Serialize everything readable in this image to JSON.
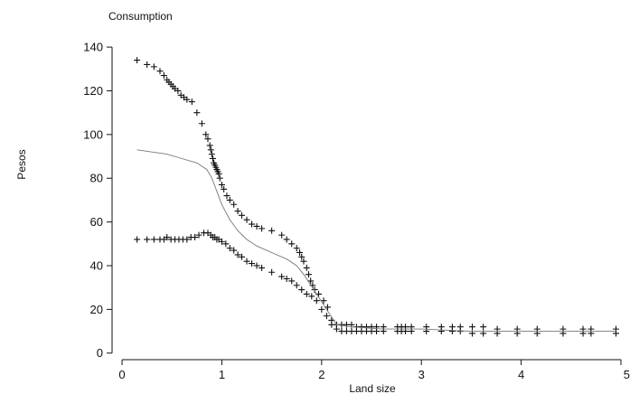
{
  "chart_data": {
    "type": "scatter",
    "title": "Consumption",
    "xlabel": "Land size",
    "ylabel": "Pesos",
    "xlim": [
      -0.1,
      5.0
    ],
    "ylim": [
      -3,
      145
    ],
    "xticks": [
      0,
      1,
      2,
      3,
      4,
      5
    ],
    "yticks": [
      0,
      20,
      40,
      60,
      80,
      100,
      120,
      140
    ],
    "grid": false,
    "legend": "none",
    "colors": {
      "marks": "#111111",
      "center_line": "#777777",
      "axis": "#111111"
    },
    "series": [
      {
        "kind": "plus-markers",
        "x": [
          0.15,
          0.25,
          0.32,
          0.38,
          0.42,
          0.45,
          0.47,
          0.49,
          0.51,
          0.53,
          0.56,
          0.59,
          0.62,
          0.65,
          0.7,
          0.75,
          0.8,
          0.84,
          0.86,
          0.88,
          0.89,
          0.9,
          0.91,
          0.92,
          0.93,
          0.94,
          0.95,
          0.96,
          0.97,
          0.98,
          1.0,
          1.02,
          1.05,
          1.08,
          1.12,
          1.16,
          1.2,
          1.25,
          1.3,
          1.35,
          1.4,
          1.5,
          1.6,
          1.65,
          1.7,
          1.75,
          1.78,
          1.8,
          1.82,
          1.85,
          1.87,
          1.89,
          1.91,
          1.93,
          1.97,
          2.02,
          2.06,
          2.1,
          2.15,
          2.2,
          2.25,
          2.3,
          2.35,
          2.4,
          2.45,
          2.5,
          2.55,
          2.62,
          2.76,
          2.8,
          2.84,
          2.9,
          3.05,
          3.2,
          3.31,
          3.39,
          3.51,
          3.62,
          3.76,
          3.96,
          4.16,
          4.42,
          4.62,
          4.7,
          4.95
        ],
        "y": [
          134,
          132,
          131,
          129,
          127,
          125,
          124,
          123,
          122,
          121,
          120,
          118,
          117,
          116,
          115,
          110,
          105,
          100,
          98,
          95,
          93,
          91,
          89,
          87,
          86,
          85,
          84,
          83,
          82,
          80,
          77,
          75,
          72,
          70,
          68,
          65,
          63,
          61,
          59,
          58,
          57,
          56,
          54,
          52,
          50,
          48,
          46,
          44,
          42,
          39,
          36,
          33,
          31,
          29,
          27,
          24,
          21,
          15,
          13,
          13,
          13,
          13,
          12,
          12,
          12,
          12,
          12,
          12,
          12,
          12,
          12,
          12,
          12,
          12,
          12,
          12,
          12,
          12,
          11,
          11,
          11,
          11,
          11,
          11,
          11
        ]
      },
      {
        "kind": "plus-markers",
        "x": [
          0.15,
          0.25,
          0.32,
          0.38,
          0.42,
          0.45,
          0.49,
          0.53,
          0.57,
          0.61,
          0.65,
          0.69,
          0.73,
          0.77,
          0.82,
          0.86,
          0.89,
          0.91,
          0.93,
          0.95,
          0.97,
          1.0,
          1.04,
          1.08,
          1.12,
          1.16,
          1.2,
          1.25,
          1.3,
          1.35,
          1.4,
          1.5,
          1.6,
          1.65,
          1.7,
          1.75,
          1.8,
          1.85,
          1.9,
          1.95,
          2.0,
          2.05,
          2.1,
          2.15,
          2.2,
          2.25,
          2.3,
          2.35,
          2.4,
          2.45,
          2.5,
          2.55,
          2.62,
          2.76,
          2.8,
          2.84,
          2.9,
          3.05,
          3.2,
          3.31,
          3.39,
          3.51,
          3.62,
          3.76,
          3.96,
          4.16,
          4.42,
          4.62,
          4.7,
          4.95
        ],
        "y": [
          52,
          52,
          52,
          52,
          52,
          53,
          52,
          52,
          52,
          52,
          52,
          53,
          53,
          54,
          55,
          55,
          54,
          53,
          53,
          52,
          52,
          51,
          50,
          48,
          47,
          45,
          44,
          42,
          41,
          40,
          39,
          37,
          35,
          34,
          33,
          31,
          29,
          27,
          26,
          24,
          20,
          17,
          13,
          11,
          10,
          10,
          10,
          10,
          10,
          10,
          10,
          10,
          10,
          10,
          10,
          10,
          10,
          10,
          10,
          10,
          10,
          9,
          9,
          9,
          9,
          9,
          9,
          9,
          9,
          9
        ]
      },
      {
        "kind": "line",
        "x": [
          0.15,
          0.3,
          0.45,
          0.6,
          0.75,
          0.85,
          0.9,
          0.95,
          1.0,
          1.08,
          1.16,
          1.25,
          1.35,
          1.5,
          1.65,
          1.75,
          1.82,
          1.88,
          1.95,
          2.05,
          2.15,
          2.3,
          2.6,
          3.0,
          3.5,
          4.0,
          4.5,
          4.95
        ],
        "y": [
          93,
          92,
          91,
          89,
          87,
          84,
          80,
          74,
          68,
          61,
          56,
          52,
          49,
          46,
          43,
          40,
          36,
          32,
          27,
          20,
          13,
          12,
          11,
          11,
          10,
          10,
          10,
          10
        ]
      }
    ]
  }
}
